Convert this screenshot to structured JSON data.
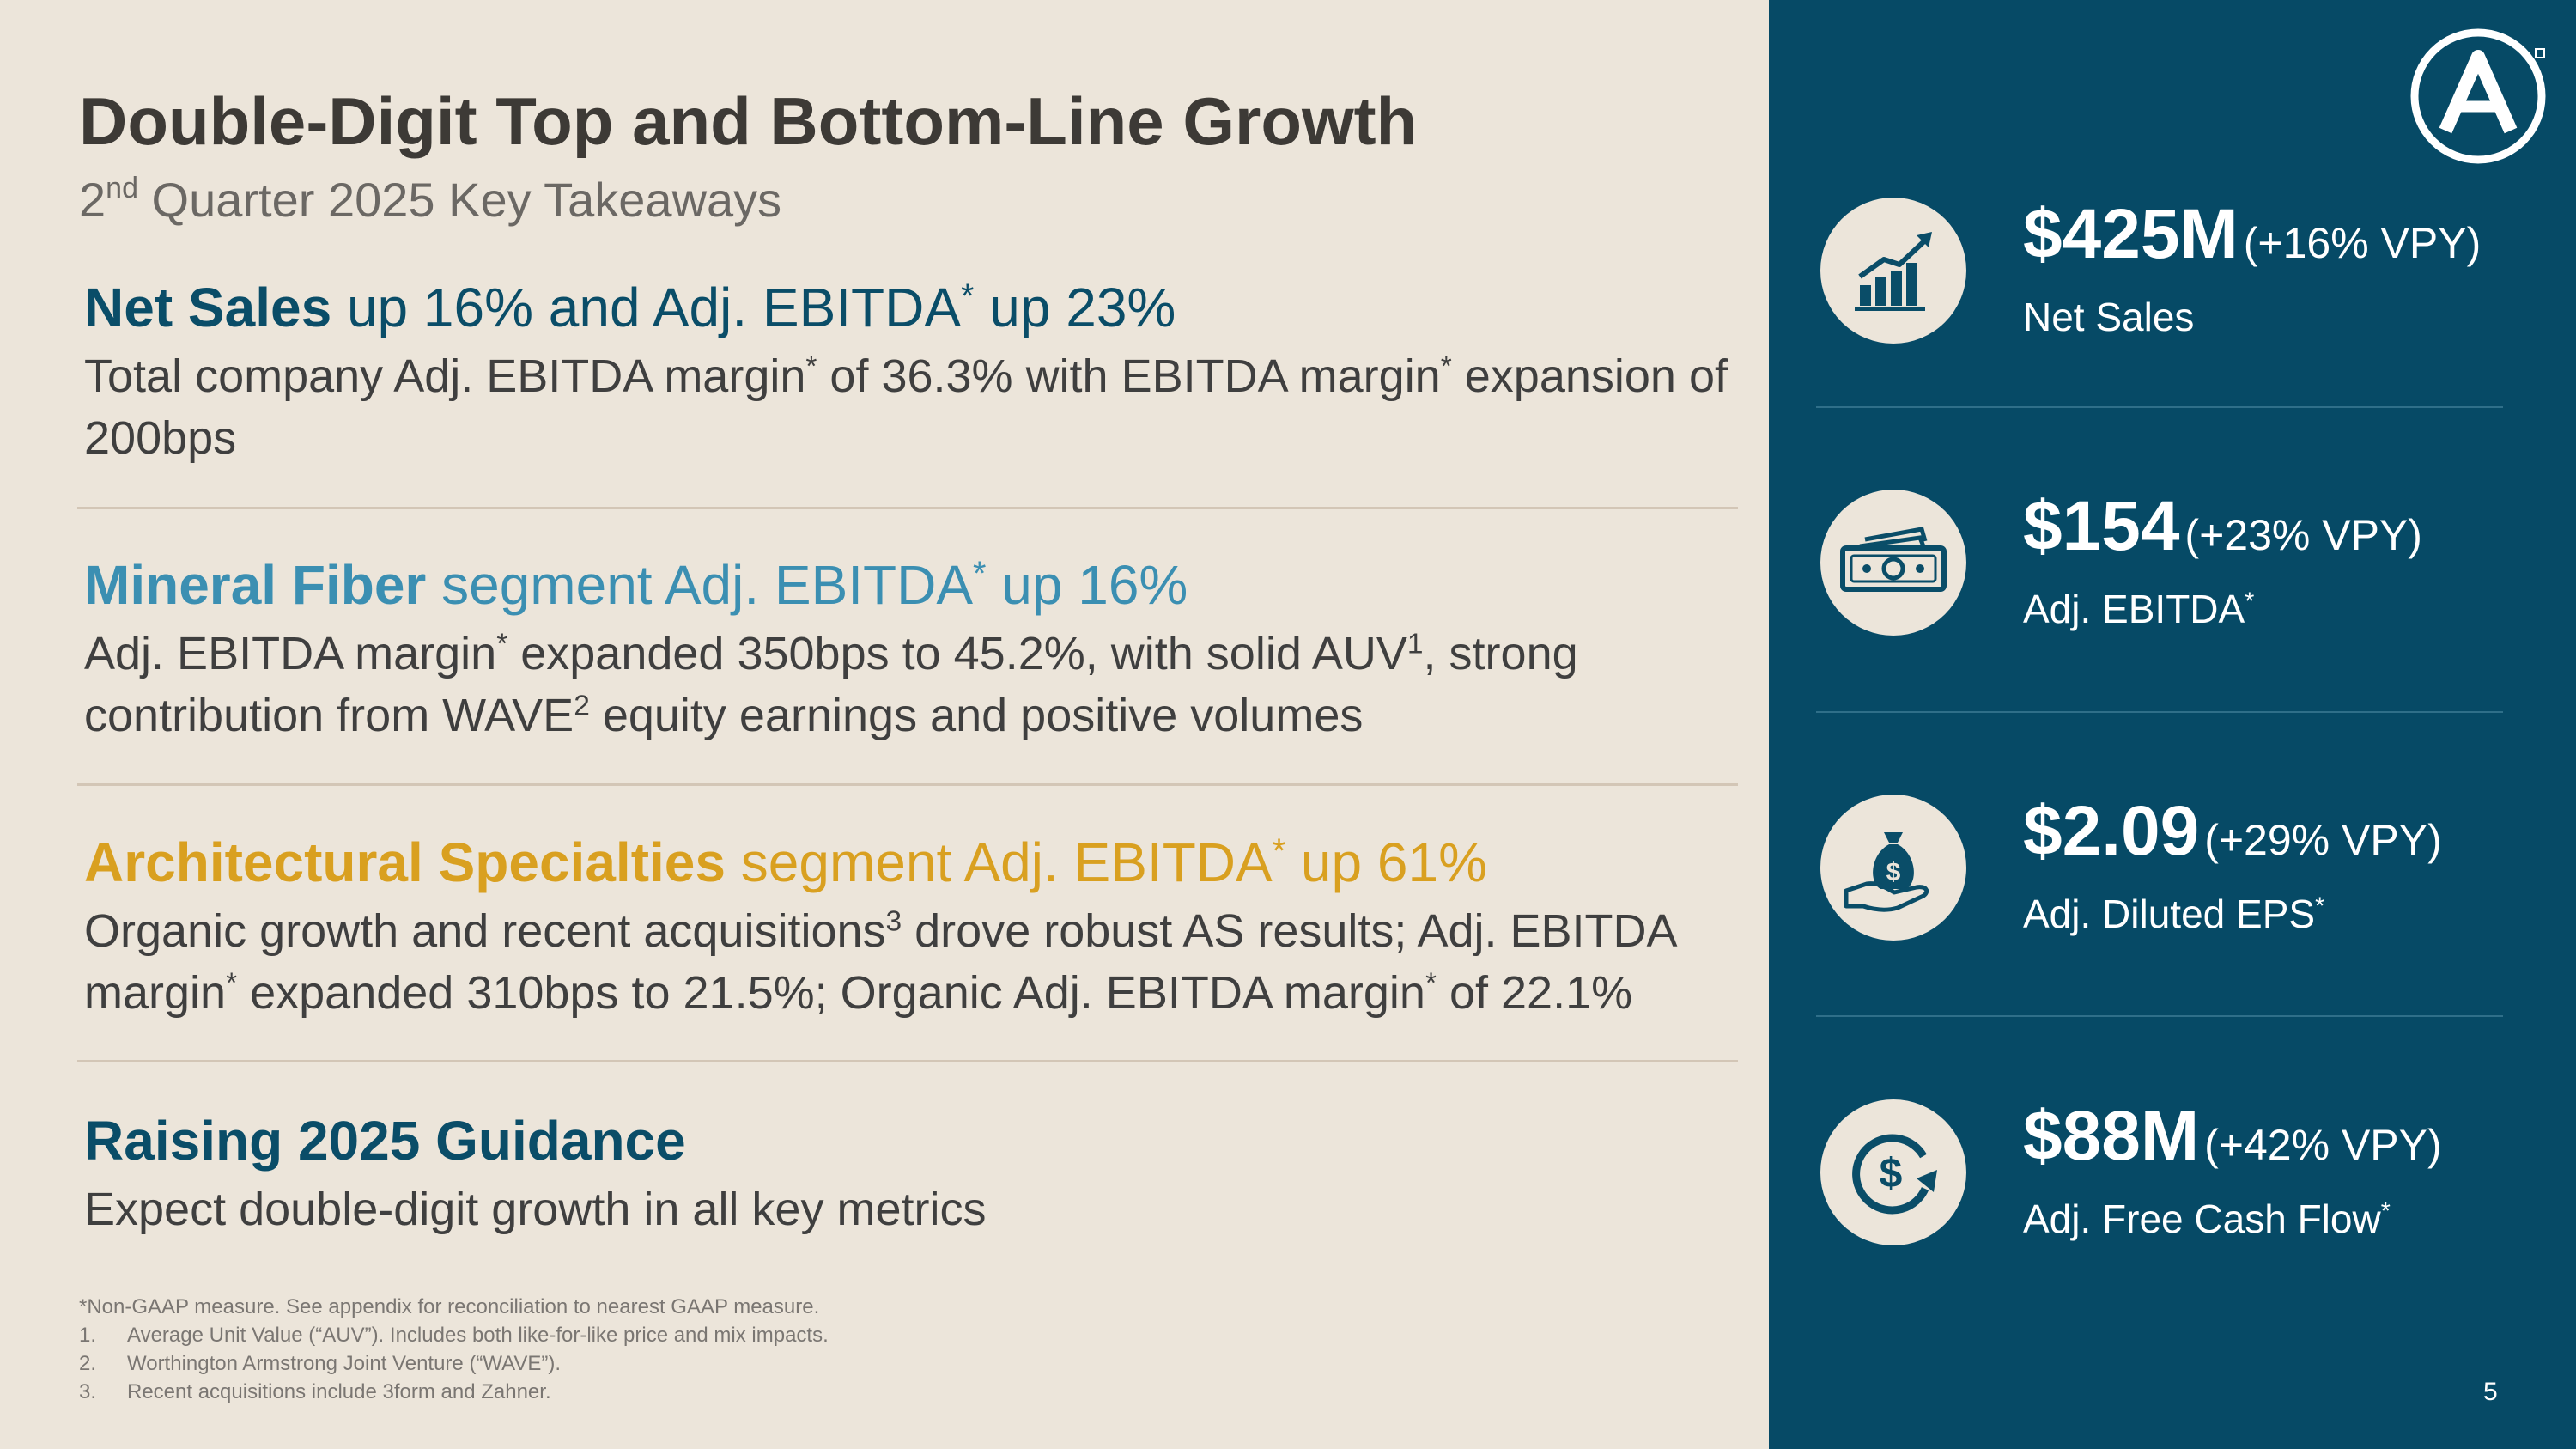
{
  "title": "Double-Digit Top and Bottom-Line Growth",
  "subtitle": {
    "sup": "nd",
    "pre": "2",
    "rest": " Quarter 2025 Key Takeaways"
  },
  "sections": [
    {
      "head_bold": "Net Sales",
      "head_rest_1": " up 16% and Adj. EBITDA",
      "head_rest_2": " up 23%",
      "body_1": "Total company Adj. EBITDA margin",
      "body_2": " of 36.3% with EBITDA margin",
      "body_3": " expansion of 200bps"
    },
    {
      "head_bold": "Mineral Fiber",
      "head_rest_1": " segment Adj. EBITDA",
      "head_rest_2": " up 16%",
      "body_1": "Adj. EBITDA margin",
      "body_2": " expanded 350bps to 45.2%, with solid AUV",
      "body_3": ", strong contribution from WAVE",
      "body_4": " equity earnings and positive volumes"
    },
    {
      "head_bold": "Architectural Specialties",
      "head_rest_1": " segment Adj. EBITDA",
      "head_rest_2": " up 61%",
      "body_1": "Organic growth and recent acquisitions",
      "body_2": " drove robust AS results; Adj. EBITDA margin",
      "body_3": " expanded 310bps to 21.5%; Organic Adj. EBITDA margin",
      "body_4": " of 22.1%"
    },
    {
      "head_bold": "Raising 2025 Guidance",
      "body_1": "Expect double-digit growth in all key metrics"
    }
  ],
  "asterisk": "*",
  "refs": {
    "one": "1",
    "two": "2",
    "three": "3"
  },
  "footnotes": {
    "nongaap": "*Non-GAAP measure. See appendix for reconciliation to nearest GAAP measure.",
    "items": [
      {
        "num": "1.",
        "text": "Average Unit Value (“AUV”). Includes both like-for-like price and mix impacts."
      },
      {
        "num": "2.",
        "text": "Worthington Armstrong Joint Venture (“WAVE”)."
      },
      {
        "num": "3.",
        "text": "Recent acquisitions include 3form and Zahner."
      }
    ]
  },
  "metrics": [
    {
      "icon": "growth-chart-icon",
      "value": "$425M",
      "change": "(+16% VPY)",
      "label": "Net Sales",
      "label_ast": ""
    },
    {
      "icon": "cash-bills-icon",
      "value": "$154",
      "change": "(+23% VPY)",
      "label": "Adj. EBITDA",
      "label_ast": "*"
    },
    {
      "icon": "money-bag-hand-icon",
      "value": "$2.09",
      "change": "(+29% VPY)",
      "label": "Adj. Diluted EPS",
      "label_ast": "*"
    },
    {
      "icon": "dollar-cycle-icon",
      "value": "$88M",
      "change": "(+42% VPY)",
      "label": "Adj. Free Cash Flow",
      "label_ast": "*"
    }
  ],
  "page_number": "5",
  "colors": {
    "navy": "#0a4d68",
    "teal": "#3b8fb2",
    "gold": "#d9a020",
    "panel": "#064a66",
    "background": "#ece5da"
  }
}
